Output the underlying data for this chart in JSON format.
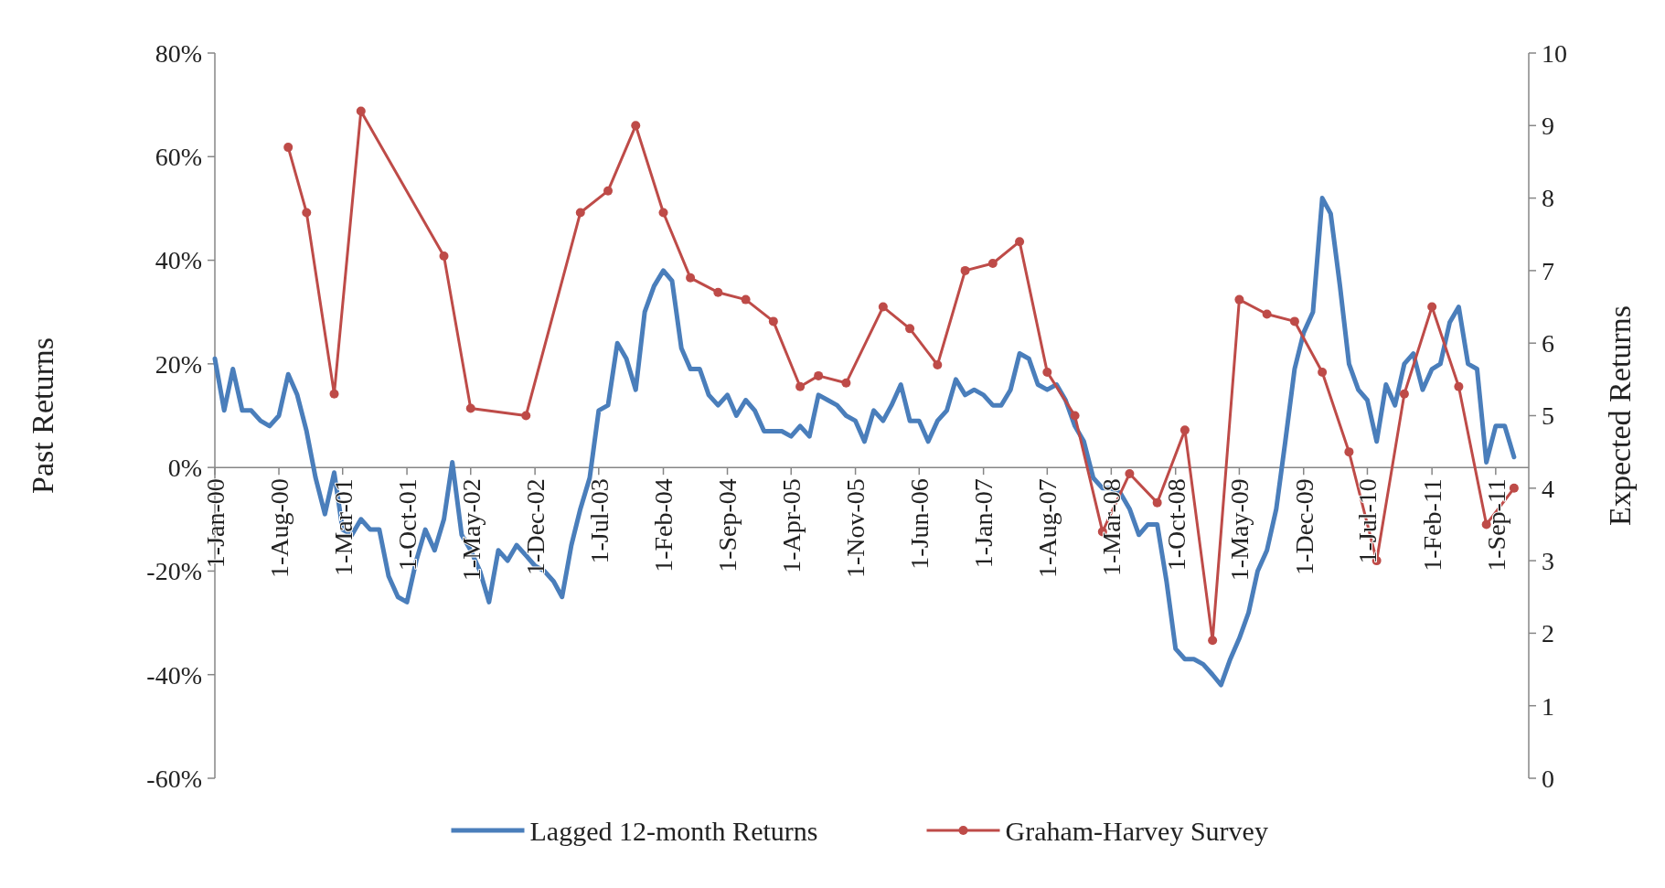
{
  "chart_data": {
    "type": "line",
    "ylabel": "Past Returns",
    "y2label": "Expected Returns",
    "xlim": [
      "2000-01-01",
      "2011-12-20"
    ],
    "xticks": [
      {
        "value": "2000-01-01",
        "label": "1-Jan-00"
      },
      {
        "value": "2000-08-01",
        "label": "1-Aug-00"
      },
      {
        "value": "2001-03-01",
        "label": "1-Mar-01"
      },
      {
        "value": "2001-10-01",
        "label": "1-Oct-01"
      },
      {
        "value": "2002-05-01",
        "label": "1-May-02"
      },
      {
        "value": "2002-12-01",
        "label": "1-Dec-02"
      },
      {
        "value": "2003-07-01",
        "label": "1-Jul-03"
      },
      {
        "value": "2004-02-01",
        "label": "1-Feb-04"
      },
      {
        "value": "2004-09-01",
        "label": "1-Sep-04"
      },
      {
        "value": "2005-04-01",
        "label": "1-Apr-05"
      },
      {
        "value": "2005-11-01",
        "label": "1-Nov-05"
      },
      {
        "value": "2006-06-01",
        "label": "1-Jun-06"
      },
      {
        "value": "2007-01-01",
        "label": "1-Jan-07"
      },
      {
        "value": "2007-08-01",
        "label": "1-Aug-07"
      },
      {
        "value": "2008-03-01",
        "label": "1-Mar-08"
      },
      {
        "value": "2008-10-01",
        "label": "1-Oct-08"
      },
      {
        "value": "2009-05-01",
        "label": "1-May-09"
      },
      {
        "value": "2009-12-01",
        "label": "1-Dec-09"
      },
      {
        "value": "2010-07-01",
        "label": "1-Jul-10"
      },
      {
        "value": "2011-02-01",
        "label": "1-Feb-11"
      },
      {
        "value": "2011-09-01",
        "label": "1-Sep-11"
      }
    ],
    "ylim": [
      -60,
      80
    ],
    "yticks": [
      {
        "value": -60,
        "label": "-60%"
      },
      {
        "value": -40,
        "label": "-40%"
      },
      {
        "value": -20,
        "label": "-20%"
      },
      {
        "value": 0,
        "label": "0%"
      },
      {
        "value": 20,
        "label": "20%"
      },
      {
        "value": 40,
        "label": "40%"
      },
      {
        "value": 60,
        "label": "60%"
      },
      {
        "value": 80,
        "label": "80%"
      }
    ],
    "y2lim": [
      0,
      10
    ],
    "y2ticks": [
      0,
      1,
      2,
      3,
      4,
      5,
      6,
      7,
      8,
      9,
      10
    ],
    "grid": false,
    "legend": "bottom",
    "series": [
      {
        "name": "Lagged 12-month Returns",
        "color": "#4a7ebb",
        "marker": "none",
        "x": [
          "2000-01",
          "2000-02",
          "2000-03",
          "2000-04",
          "2000-05",
          "2000-06",
          "2000-07",
          "2000-08",
          "2000-09",
          "2000-10",
          "2000-11",
          "2000-12",
          "2001-01",
          "2001-02",
          "2001-03",
          "2001-04",
          "2001-05",
          "2001-06",
          "2001-07",
          "2001-08",
          "2001-09",
          "2001-10",
          "2001-11",
          "2001-12",
          "2002-01",
          "2002-02",
          "2002-03",
          "2002-04",
          "2002-05",
          "2002-06",
          "2002-07",
          "2002-08",
          "2002-09",
          "2002-10",
          "2002-11",
          "2002-12",
          "2003-01",
          "2003-02",
          "2003-03",
          "2003-04",
          "2003-05",
          "2003-06",
          "2003-07",
          "2003-08",
          "2003-09",
          "2003-10",
          "2003-11",
          "2003-12",
          "2004-01",
          "2004-02",
          "2004-03",
          "2004-04",
          "2004-05",
          "2004-06",
          "2004-07",
          "2004-08",
          "2004-09",
          "2004-10",
          "2004-11",
          "2004-12",
          "2005-01",
          "2005-02",
          "2005-03",
          "2005-04",
          "2005-05",
          "2005-06",
          "2005-07",
          "2005-08",
          "2005-09",
          "2005-10",
          "2005-11",
          "2005-12",
          "2006-01",
          "2006-02",
          "2006-03",
          "2006-04",
          "2006-05",
          "2006-06",
          "2006-07",
          "2006-08",
          "2006-09",
          "2006-10",
          "2006-11",
          "2006-12",
          "2007-01",
          "2007-02",
          "2007-03",
          "2007-04",
          "2007-05",
          "2007-06",
          "2007-07",
          "2007-08",
          "2007-09",
          "2007-10",
          "2007-11",
          "2007-12",
          "2008-01",
          "2008-02",
          "2008-03",
          "2008-04",
          "2008-05",
          "2008-06",
          "2008-07",
          "2008-08",
          "2008-09",
          "2008-10",
          "2008-11",
          "2008-12",
          "2009-01",
          "2009-02",
          "2009-03",
          "2009-04",
          "2009-05",
          "2009-06",
          "2009-07",
          "2009-08",
          "2009-09",
          "2009-10",
          "2009-11",
          "2009-12",
          "2010-01",
          "2010-02",
          "2010-03",
          "2010-04",
          "2010-05",
          "2010-06",
          "2010-07",
          "2010-08",
          "2010-09",
          "2010-10",
          "2010-11",
          "2010-12",
          "2011-01",
          "2011-02",
          "2011-03",
          "2011-04",
          "2011-05",
          "2011-06",
          "2011-07",
          "2011-08",
          "2011-09",
          "2011-10",
          "2011-11"
        ],
        "values": [
          21,
          11,
          19,
          11,
          11,
          9,
          8,
          10,
          18,
          14,
          7,
          -2,
          -9,
          -1,
          -12,
          -13,
          -10,
          -12,
          -12,
          -21,
          -25,
          -26,
          -18,
          -12,
          -16,
          -10,
          1,
          -13,
          -16,
          -20,
          -26,
          -16,
          -18,
          -15,
          -17,
          -19,
          -20,
          -22,
          -25,
          -15,
          -8,
          -2,
          11,
          12,
          24,
          21,
          15,
          30,
          35,
          38,
          36,
          23,
          19,
          19,
          14,
          12,
          14,
          10,
          13,
          11,
          7,
          7,
          7,
          6,
          8,
          6,
          14,
          13,
          12,
          10,
          9,
          5,
          11,
          9,
          12,
          16,
          9,
          9,
          5,
          9,
          11,
          17,
          14,
          15,
          14,
          12,
          12,
          15,
          22,
          21,
          16,
          15,
          16,
          13,
          8,
          5,
          -2,
          -4,
          -4,
          -5,
          -8,
          -13,
          -11,
          -11,
          -22,
          -35,
          -37,
          -37,
          -38,
          -40,
          -42,
          -37,
          -33,
          -28,
          -20,
          -16,
          -8,
          5,
          19,
          26,
          30,
          52,
          49,
          35,
          20,
          15,
          13,
          5,
          16,
          12,
          20,
          22,
          15,
          19,
          20,
          28,
          31,
          20,
          19,
          1,
          8,
          8,
          2
        ]
      },
      {
        "name": "Graham-Harvey Survey",
        "color": "#be4b48",
        "axis": "y2",
        "marker": "circle",
        "x": [
          "2000-09",
          "2000-11",
          "2001-02",
          "2001-05",
          "2002-02",
          "2002-05",
          "2002-11",
          "2003-05",
          "2003-08",
          "2003-11",
          "2004-02",
          "2004-05",
          "2004-08",
          "2004-11",
          "2005-02",
          "2005-05",
          "2005-07",
          "2005-10",
          "2006-02",
          "2006-05",
          "2006-08",
          "2006-11",
          "2007-02",
          "2007-05",
          "2007-08",
          "2007-11",
          "2008-02",
          "2008-05",
          "2008-08",
          "2008-11",
          "2009-02",
          "2009-05",
          "2009-08",
          "2009-11",
          "2010-02",
          "2010-05",
          "2010-08",
          "2010-11",
          "2011-02",
          "2011-05",
          "2011-08",
          "2011-11"
        ],
        "values": [
          8.7,
          7.8,
          5.3,
          9.2,
          7.2,
          5.1,
          5.0,
          7.8,
          8.1,
          9.0,
          7.8,
          6.9,
          6.7,
          6.6,
          6.3,
          5.4,
          5.55,
          5.45,
          6.5,
          6.2,
          5.7,
          7.0,
          7.1,
          7.4,
          5.6,
          5.0,
          3.4,
          4.2,
          3.8,
          4.8,
          1.9,
          6.6,
          6.4,
          6.3,
          5.6,
          4.5,
          3.0,
          5.3,
          6.5,
          5.4,
          3.5,
          4.0
        ]
      }
    ]
  }
}
